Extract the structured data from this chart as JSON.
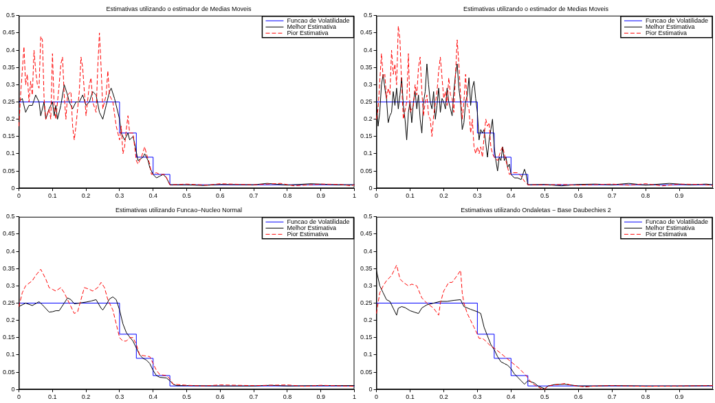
{
  "chart_data": [
    {
      "type": "line",
      "title": "Estimativas utilizando o estimador de Medias Moveis",
      "xlim": [
        0,
        1
      ],
      "xticks": [
        0,
        0.1,
        0.2,
        0.3,
        0.4,
        0.5,
        0.6,
        0.7,
        0.8,
        0.9,
        1
      ],
      "ylim": [
        0,
        0.5
      ],
      "yticks": [
        0,
        0.05,
        0.1,
        0.15,
        0.2,
        0.25,
        0.3,
        0.35,
        0.4,
        0.45,
        0.5
      ],
      "legend": "top right",
      "marker": "none",
      "series": [
        {
          "name": "Funcao de Volatilidade",
          "type": "step",
          "color": "#0000ff",
          "line_style": "solid",
          "x": [
            0,
            0.3,
            0.35,
            0.4,
            0.45,
            1
          ],
          "values": [
            0.25,
            0.16,
            0.09,
            0.04,
            0.01,
            0.01
          ]
        },
        {
          "name": "Melhor Estimativa",
          "type": "line",
          "color": "#000000",
          "line_style": "solid",
          "x": [
            0,
            0.01,
            0.02,
            0.03,
            0.04,
            0.05,
            0.06,
            0.065,
            0.075,
            0.08,
            0.09,
            0.1,
            0.105,
            0.11,
            0.115,
            0.125,
            0.135,
            0.145,
            0.15,
            0.16,
            0.17,
            0.18,
            0.19,
            0.2,
            0.21,
            0.22,
            0.23,
            0.24,
            0.25,
            0.26,
            0.27,
            0.275,
            0.285,
            0.3,
            0.305,
            0.315,
            0.325,
            0.33,
            0.34,
            0.345,
            0.355,
            0.37,
            0.375,
            0.385,
            0.39,
            0.4,
            0.41,
            0.42,
            0.43,
            0.44,
            0.45,
            0.5,
            0.55,
            0.6,
            0.7,
            0.74,
            0.8,
            0.87,
            0.95,
            1
          ],
          "values": [
            0.25,
            0.26,
            0.22,
            0.24,
            0.24,
            0.27,
            0.25,
            0.21,
            0.25,
            0.2,
            0.23,
            0.25,
            0.21,
            0.24,
            0.2,
            0.24,
            0.3,
            0.27,
            0.25,
            0.23,
            0.25,
            0.25,
            0.27,
            0.24,
            0.25,
            0.28,
            0.27,
            0.22,
            0.2,
            0.24,
            0.28,
            0.29,
            0.26,
            0.2,
            0.16,
            0.14,
            0.16,
            0.14,
            0.15,
            0.13,
            0.08,
            0.09,
            0.1,
            0.08,
            0.06,
            0.04,
            0.03,
            0.035,
            0.04,
            0.03,
            0.01,
            0.01,
            0.008,
            0.011,
            0.01,
            0.014,
            0.009,
            0.013,
            0.01,
            0.01
          ]
        },
        {
          "name": "Pior Estimativa",
          "type": "line",
          "color": "#ff0000",
          "line_style": "dashed",
          "x": [
            0,
            0.005,
            0.015,
            0.02,
            0.025,
            0.03,
            0.035,
            0.04,
            0.045,
            0.05,
            0.055,
            0.06,
            0.065,
            0.07,
            0.075,
            0.08,
            0.09,
            0.095,
            0.1,
            0.105,
            0.11,
            0.12,
            0.125,
            0.13,
            0.135,
            0.14,
            0.145,
            0.155,
            0.16,
            0.165,
            0.17,
            0.18,
            0.185,
            0.19,
            0.2,
            0.21,
            0.215,
            0.22,
            0.23,
            0.235,
            0.24,
            0.245,
            0.25,
            0.26,
            0.265,
            0.27,
            0.28,
            0.29,
            0.3,
            0.305,
            0.31,
            0.315,
            0.32,
            0.325,
            0.33,
            0.34,
            0.345,
            0.35,
            0.355,
            0.365,
            0.375,
            0.38,
            0.39,
            0.395,
            0.41,
            0.42,
            0.435,
            0.445,
            0.45,
            0.5,
            0.56,
            0.6,
            0.7,
            0.78,
            0.82,
            0.9,
            0.96,
            0.99,
            1
          ],
          "values": [
            0.18,
            0.27,
            0.41,
            0.3,
            0.33,
            0.25,
            0.31,
            0.27,
            0.4,
            0.34,
            0.3,
            0.29,
            0.44,
            0.43,
            0.26,
            0.2,
            0.23,
            0.2,
            0.39,
            0.24,
            0.2,
            0.3,
            0.36,
            0.38,
            0.27,
            0.2,
            0.27,
            0.28,
            0.18,
            0.14,
            0.18,
            0.28,
            0.38,
            0.35,
            0.21,
            0.3,
            0.32,
            0.25,
            0.22,
            0.35,
            0.45,
            0.35,
            0.23,
            0.27,
            0.34,
            0.27,
            0.25,
            0.18,
            0.14,
            0.18,
            0.1,
            0.12,
            0.17,
            0.21,
            0.16,
            0.16,
            0.12,
            0.08,
            0.07,
            0.09,
            0.12,
            0.1,
            0.07,
            0.04,
            0.045,
            0.04,
            0.04,
            0.02,
            0.01,
            0.012,
            0.009,
            0.013,
            0.01,
            0.014,
            0.007,
            0.012,
            0.011,
            0.007,
            0.01
          ]
        }
      ]
    },
    {
      "type": "line",
      "title": "Estimativas utilizando o estimador de Medias Moveis",
      "xlim": [
        0,
        1
      ],
      "xticks": [
        0,
        0.1,
        0.2,
        0.3,
        0.4,
        0.5,
        0.6,
        0.7,
        0.8,
        0.9
      ],
      "ylim": [
        0,
        0.5
      ],
      "yticks": [
        0,
        0.05,
        0.1,
        0.15,
        0.2,
        0.25,
        0.3,
        0.35,
        0.4,
        0.45,
        0.5
      ],
      "legend": "top right",
      "marker": "none",
      "series": [
        {
          "name": "Funcao de Volatilidade",
          "type": "step",
          "color": "#0000ff",
          "line_style": "solid",
          "x": [
            0,
            0.3,
            0.35,
            0.4,
            0.45,
            1
          ],
          "values": [
            0.25,
            0.16,
            0.09,
            0.04,
            0.01,
            0.01
          ]
        },
        {
          "name": "Melhor Estimativa",
          "type": "line",
          "color": "#000000",
          "line_style": "solid",
          "x": [
            0,
            0.005,
            0.01,
            0.015,
            0.02,
            0.025,
            0.03,
            0.035,
            0.04,
            0.045,
            0.05,
            0.055,
            0.06,
            0.065,
            0.07,
            0.075,
            0.08,
            0.085,
            0.09,
            0.095,
            0.1,
            0.105,
            0.11,
            0.115,
            0.12,
            0.125,
            0.13,
            0.135,
            0.14,
            0.145,
            0.15,
            0.155,
            0.16,
            0.165,
            0.17,
            0.175,
            0.18,
            0.185,
            0.19,
            0.195,
            0.2,
            0.205,
            0.21,
            0.215,
            0.22,
            0.225,
            0.23,
            0.235,
            0.24,
            0.245,
            0.25,
            0.255,
            0.26,
            0.265,
            0.27,
            0.275,
            0.28,
            0.285,
            0.29,
            0.295,
            0.3,
            0.305,
            0.31,
            0.315,
            0.32,
            0.325,
            0.33,
            0.335,
            0.34,
            0.345,
            0.35,
            0.355,
            0.36,
            0.365,
            0.37,
            0.375,
            0.38,
            0.385,
            0.39,
            0.395,
            0.4,
            0.41,
            0.42,
            0.43,
            0.44,
            0.445,
            0.45,
            0.5,
            0.55,
            0.6,
            0.65,
            0.7,
            0.75,
            0.8,
            0.87,
            0.93,
            0.98,
            1
          ],
          "values": [
            0.25,
            0.18,
            0.22,
            0.3,
            0.33,
            0.29,
            0.26,
            0.19,
            0.21,
            0.22,
            0.28,
            0.24,
            0.29,
            0.23,
            0.27,
            0.32,
            0.24,
            0.2,
            0.14,
            0.22,
            0.25,
            0.19,
            0.25,
            0.28,
            0.23,
            0.27,
            0.2,
            0.16,
            0.25,
            0.28,
            0.36,
            0.3,
            0.25,
            0.23,
            0.28,
            0.2,
            0.24,
            0.29,
            0.22,
            0.26,
            0.25,
            0.23,
            0.29,
            0.25,
            0.23,
            0.21,
            0.28,
            0.33,
            0.36,
            0.29,
            0.25,
            0.17,
            0.19,
            0.25,
            0.27,
            0.32,
            0.24,
            0.29,
            0.31,
            0.26,
            0.22,
            0.14,
            0.17,
            0.16,
            0.17,
            0.13,
            0.09,
            0.14,
            0.17,
            0.2,
            0.12,
            0.08,
            0.05,
            0.09,
            0.08,
            0.12,
            0.08,
            0.09,
            0.06,
            0.07,
            0.04,
            0.03,
            0.03,
            0.025,
            0.055,
            0.04,
            0.01,
            0.011,
            0.007,
            0.011,
            0.012,
            0.01,
            0.014,
            0.009,
            0.014,
            0.01,
            0.012,
            0.01
          ]
        },
        {
          "name": "Pior Estimativa",
          "type": "line",
          "color": "#ff0000",
          "line_style": "dashed",
          "x": [
            0,
            0.005,
            0.015,
            0.02,
            0.025,
            0.03,
            0.035,
            0.04,
            0.045,
            0.05,
            0.055,
            0.06,
            0.065,
            0.07,
            0.075,
            0.08,
            0.09,
            0.095,
            0.1,
            0.11,
            0.115,
            0.12,
            0.125,
            0.13,
            0.135,
            0.14,
            0.145,
            0.15,
            0.155,
            0.16,
            0.165,
            0.17,
            0.18,
            0.185,
            0.19,
            0.2,
            0.205,
            0.21,
            0.215,
            0.22,
            0.225,
            0.23,
            0.235,
            0.24,
            0.245,
            0.25,
            0.255,
            0.26,
            0.265,
            0.27,
            0.275,
            0.28,
            0.285,
            0.29,
            0.295,
            0.3,
            0.305,
            0.31,
            0.315,
            0.32,
            0.325,
            0.33,
            0.335,
            0.34,
            0.345,
            0.35,
            0.36,
            0.37,
            0.375,
            0.38,
            0.385,
            0.39,
            0.395,
            0.405,
            0.42,
            0.43,
            0.44,
            0.45,
            0.51,
            0.55,
            0.6,
            0.7,
            0.75,
            0.8,
            0.85,
            0.9,
            0.97,
            1
          ],
          "values": [
            0.2,
            0.23,
            0.39,
            0.32,
            0.33,
            0.26,
            0.29,
            0.27,
            0.4,
            0.33,
            0.36,
            0.3,
            0.47,
            0.43,
            0.3,
            0.2,
            0.25,
            0.39,
            0.22,
            0.24,
            0.3,
            0.27,
            0.35,
            0.38,
            0.28,
            0.21,
            0.25,
            0.27,
            0.21,
            0.2,
            0.15,
            0.21,
            0.28,
            0.34,
            0.38,
            0.26,
            0.28,
            0.24,
            0.32,
            0.27,
            0.26,
            0.22,
            0.33,
            0.43,
            0.36,
            0.27,
            0.2,
            0.25,
            0.33,
            0.24,
            0.23,
            0.16,
            0.2,
            0.12,
            0.1,
            0.12,
            0.1,
            0.12,
            0.09,
            0.15,
            0.2,
            0.18,
            0.19,
            0.12,
            0.1,
            0.09,
            0.08,
            0.11,
            0.12,
            0.1,
            0.08,
            0.06,
            0.04,
            0.045,
            0.045,
            0.035,
            0.02,
            0.01,
            0.01,
            0.011,
            0.009,
            0.012,
            0.009,
            0.013,
            0.007,
            0.012,
            0.011,
            0.008
          ]
        }
      ]
    },
    {
      "type": "line",
      "title": "Estimativas utilizando Funcao−Nucleo Normal",
      "xlim": [
        0,
        1
      ],
      "xticks": [
        0,
        0.1,
        0.2,
        0.3,
        0.4,
        0.5,
        0.6,
        0.7,
        0.8,
        0.9,
        1
      ],
      "ylim": [
        0,
        0.5
      ],
      "yticks": [
        0,
        0.05,
        0.1,
        0.15,
        0.2,
        0.25,
        0.3,
        0.35,
        0.4,
        0.45,
        0.5
      ],
      "legend": "top right",
      "marker": "none",
      "series": [
        {
          "name": "Funcao de Volatilidade",
          "type": "step",
          "color": "#0000ff",
          "line_style": "solid",
          "x": [
            0,
            0.3,
            0.35,
            0.4,
            0.45,
            1
          ],
          "values": [
            0.25,
            0.16,
            0.09,
            0.04,
            0.01,
            0.01
          ]
        },
        {
          "name": "Melhor Estimativa",
          "type": "line",
          "color": "#000000",
          "line_style": "solid",
          "x": [
            0,
            0.02,
            0.04,
            0.06,
            0.07,
            0.09,
            0.1,
            0.11,
            0.12,
            0.135,
            0.145,
            0.155,
            0.165,
            0.18,
            0.2,
            0.215,
            0.23,
            0.245,
            0.25,
            0.26,
            0.27,
            0.28,
            0.29,
            0.3,
            0.31,
            0.32,
            0.33,
            0.34,
            0.35,
            0.36,
            0.37,
            0.38,
            0.39,
            0.4,
            0.41,
            0.42,
            0.44,
            0.45,
            0.46,
            0.47,
            0.5,
            0.6,
            0.7,
            0.75,
            0.8,
            0.9,
            1
          ],
          "values": [
            0.24,
            0.25,
            0.243,
            0.254,
            0.245,
            0.224,
            0.225,
            0.228,
            0.228,
            0.25,
            0.265,
            0.26,
            0.248,
            0.25,
            0.253,
            0.256,
            0.26,
            0.235,
            0.23,
            0.245,
            0.262,
            0.268,
            0.26,
            0.23,
            0.19,
            0.165,
            0.152,
            0.14,
            0.12,
            0.1,
            0.09,
            0.085,
            0.075,
            0.055,
            0.04,
            0.035,
            0.033,
            0.025,
            0.015,
            0.011,
            0.011,
            0.01,
            0.01,
            0.012,
            0.01,
            0.011,
            0.011
          ]
        },
        {
          "name": "Pior Estimativa",
          "type": "line",
          "color": "#ff0000",
          "line_style": "dashed",
          "x": [
            0,
            0.01,
            0.02,
            0.04,
            0.05,
            0.065,
            0.08,
            0.09,
            0.1,
            0.11,
            0.125,
            0.135,
            0.15,
            0.165,
            0.175,
            0.185,
            0.195,
            0.21,
            0.22,
            0.235,
            0.245,
            0.255,
            0.265,
            0.28,
            0.29,
            0.3,
            0.31,
            0.32,
            0.33,
            0.34,
            0.35,
            0.36,
            0.37,
            0.39,
            0.4,
            0.41,
            0.42,
            0.44,
            0.45,
            0.46,
            0.5,
            0.55,
            0.6,
            0.7,
            0.8,
            0.85,
            0.9,
            1
          ],
          "values": [
            0.24,
            0.28,
            0.3,
            0.315,
            0.33,
            0.348,
            0.32,
            0.295,
            0.29,
            0.285,
            0.295,
            0.28,
            0.25,
            0.22,
            0.225,
            0.26,
            0.295,
            0.29,
            0.285,
            0.295,
            0.31,
            0.295,
            0.26,
            0.23,
            0.19,
            0.15,
            0.14,
            0.14,
            0.15,
            0.15,
            0.13,
            0.1,
            0.098,
            0.095,
            0.075,
            0.055,
            0.043,
            0.04,
            0.03,
            0.015,
            0.012,
            0.01,
            0.013,
            0.011,
            0.013,
            0.009,
            0.012,
            0.009
          ]
        }
      ]
    },
    {
      "type": "line",
      "title": "Estimativas utilizando Ondaletas − Base Daubechies 2",
      "xlim": [
        0,
        1
      ],
      "xticks": [
        0,
        0.1,
        0.2,
        0.3,
        0.4,
        0.5,
        0.6,
        0.7,
        0.8,
        0.9
      ],
      "ylim": [
        0,
        0.5
      ],
      "yticks": [
        0,
        0.05,
        0.1,
        0.15,
        0.2,
        0.25,
        0.3,
        0.35,
        0.4,
        0.45,
        0.5
      ],
      "legend": "top right",
      "marker": "none",
      "series": [
        {
          "name": "Funcao de Volatilidade",
          "type": "step",
          "color": "#0000ff",
          "line_style": "solid",
          "x": [
            0,
            0.3,
            0.35,
            0.4,
            0.45,
            1
          ],
          "values": [
            0.25,
            0.16,
            0.09,
            0.04,
            0.01,
            0.01
          ]
        },
        {
          "name": "Melhor Estimativa",
          "type": "line",
          "color": "#000000",
          "line_style": "solid",
          "x": [
            0,
            0.01,
            0.02,
            0.03,
            0.04,
            0.05,
            0.06,
            0.065,
            0.075,
            0.085,
            0.1,
            0.115,
            0.125,
            0.135,
            0.15,
            0.17,
            0.19,
            0.21,
            0.23,
            0.25,
            0.26,
            0.28,
            0.3,
            0.31,
            0.32,
            0.33,
            0.34,
            0.35,
            0.36,
            0.37,
            0.38,
            0.39,
            0.4,
            0.41,
            0.42,
            0.43,
            0.44,
            0.45,
            0.46,
            0.47,
            0.48,
            0.5,
            0.51,
            0.53,
            0.56,
            0.6,
            0.65,
            0.7,
            0.8,
            0.9,
            1
          ],
          "values": [
            0.345,
            0.3,
            0.28,
            0.26,
            0.255,
            0.235,
            0.215,
            0.235,
            0.24,
            0.237,
            0.228,
            0.223,
            0.22,
            0.236,
            0.245,
            0.25,
            0.255,
            0.255,
            0.258,
            0.26,
            0.24,
            0.232,
            0.225,
            0.22,
            0.18,
            0.155,
            0.13,
            0.115,
            0.095,
            0.08,
            0.075,
            0.07,
            0.06,
            0.045,
            0.035,
            0.025,
            0.015,
            0.025,
            0.022,
            0.018,
            0.01,
            0.002,
            0.01,
            0.014,
            0.015,
            0.01,
            0.01,
            0.011,
            0.01,
            0.01,
            0.011
          ]
        },
        {
          "name": "Pior Estimativa",
          "type": "line",
          "color": "#ff0000",
          "line_style": "dashed",
          "x": [
            0,
            0.01,
            0.02,
            0.03,
            0.045,
            0.06,
            0.07,
            0.08,
            0.095,
            0.105,
            0.12,
            0.135,
            0.15,
            0.17,
            0.185,
            0.19,
            0.2,
            0.215,
            0.225,
            0.24,
            0.25,
            0.255,
            0.26,
            0.27,
            0.28,
            0.29,
            0.3,
            0.305,
            0.315,
            0.325,
            0.34,
            0.35,
            0.375,
            0.4,
            0.425,
            0.445,
            0.46,
            0.475,
            0.49,
            0.5,
            0.51,
            0.53,
            0.56,
            0.58,
            0.62,
            0.65,
            0.7,
            0.8,
            0.9,
            1
          ],
          "values": [
            0.22,
            0.28,
            0.3,
            0.315,
            0.33,
            0.36,
            0.32,
            0.31,
            0.3,
            0.305,
            0.3,
            0.265,
            0.25,
            0.235,
            0.215,
            0.25,
            0.285,
            0.31,
            0.31,
            0.33,
            0.345,
            0.28,
            0.25,
            0.22,
            0.2,
            0.18,
            0.16,
            0.148,
            0.148,
            0.14,
            0.125,
            0.12,
            0.1,
            0.08,
            0.06,
            0.04,
            0.02,
            0.01,
            0.002,
            0,
            0.01,
            0.013,
            0.017,
            0.012,
            0.007,
            0.01,
            0.011,
            0.009,
            0.01,
            0.011
          ]
        }
      ]
    }
  ]
}
